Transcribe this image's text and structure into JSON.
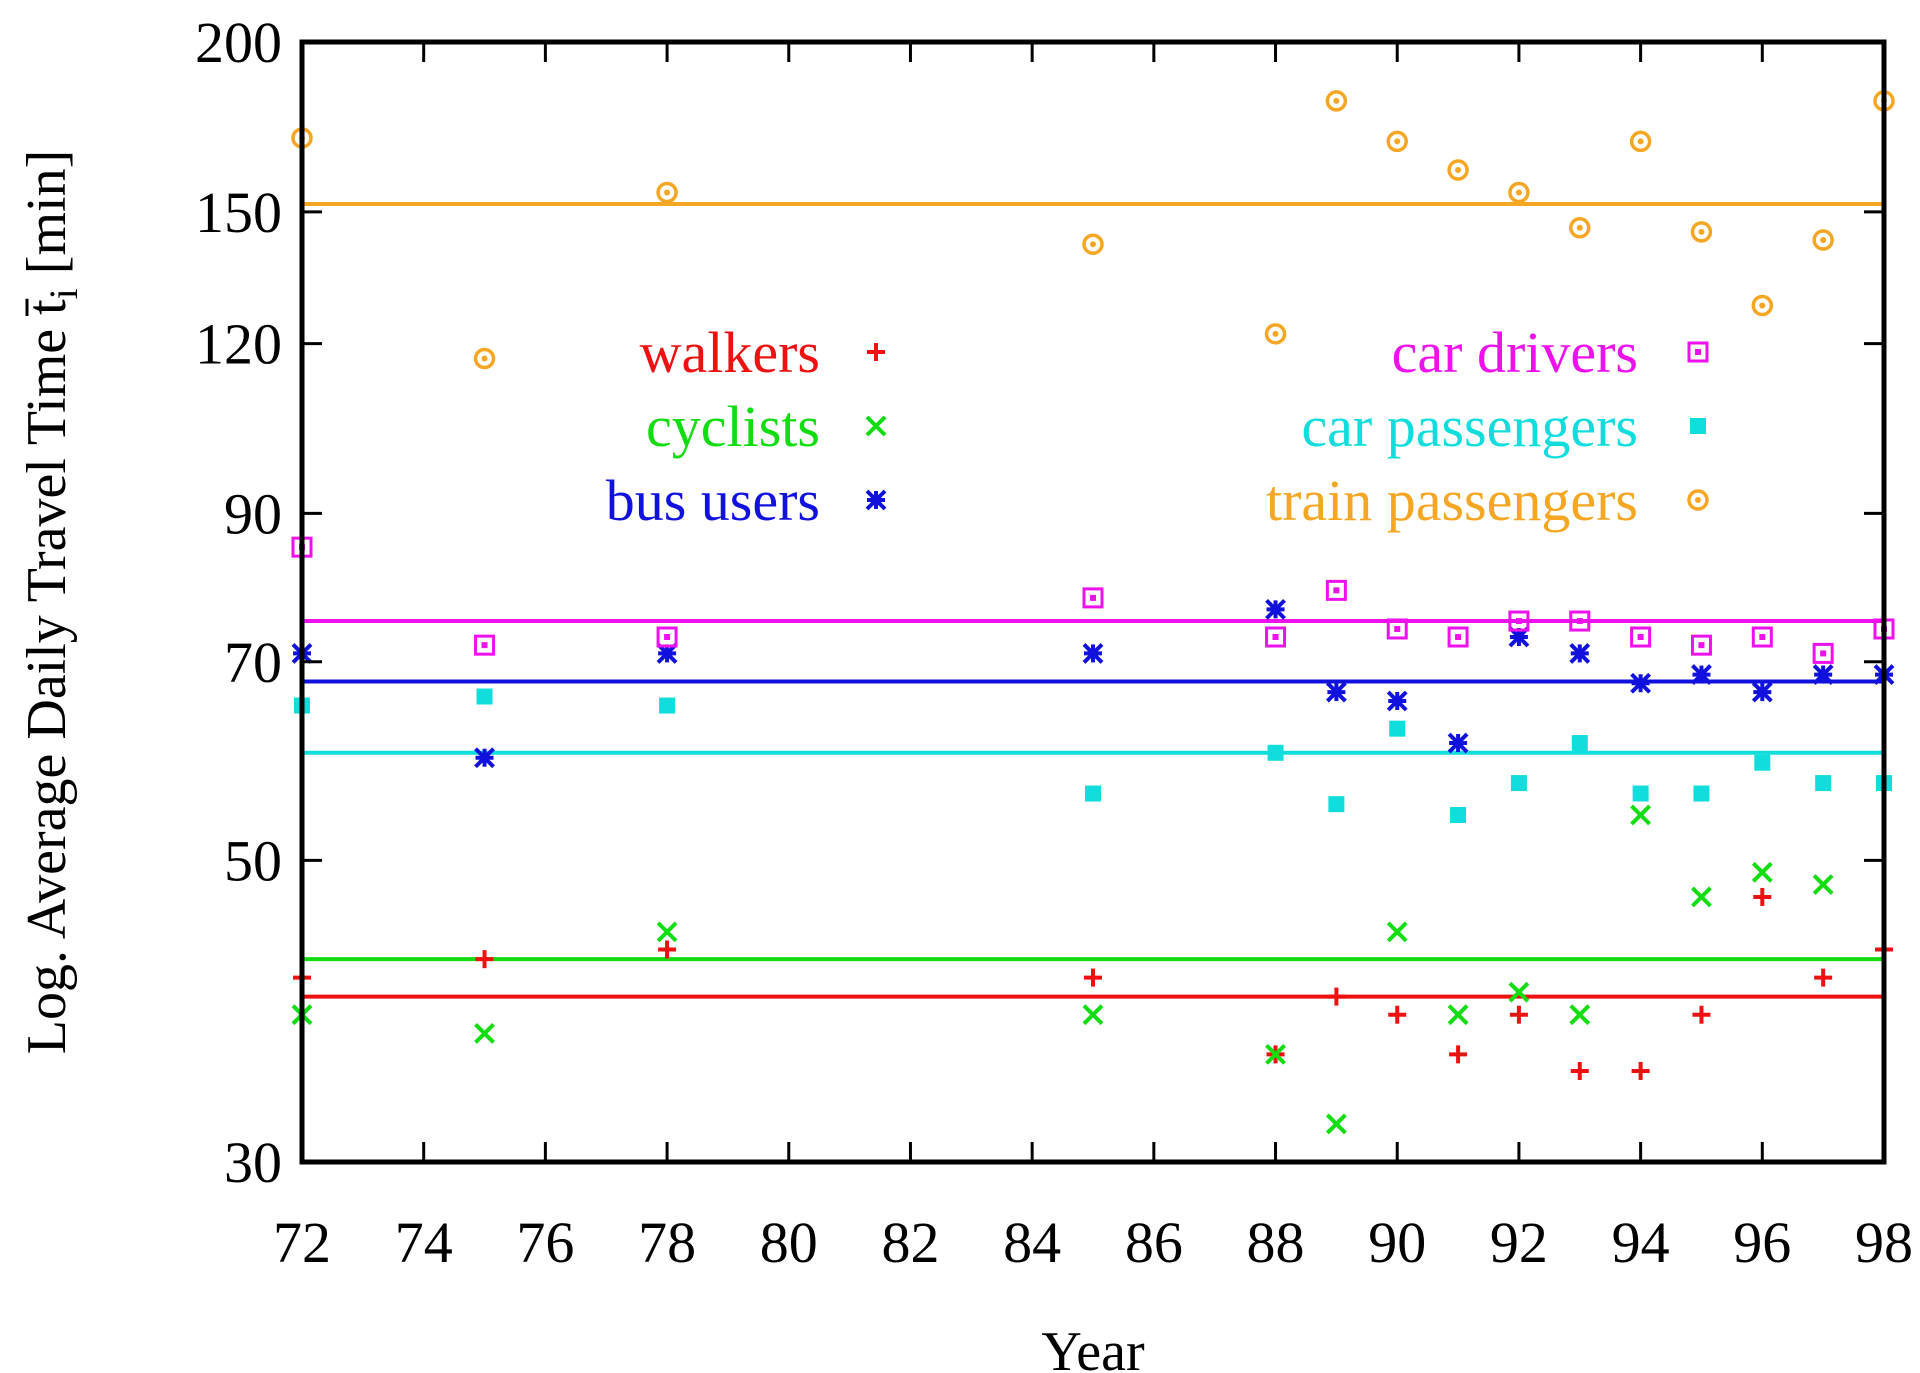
{
  "chart_data": {
    "type": "scatter",
    "xlabel": "Year",
    "ylabel": "Log. Average Daily Travel Time t̄",
    "ylabel_sub": "i",
    "ylabel_unit": " [min]",
    "xlim": [
      72,
      98
    ],
    "ylim": [
      30,
      200
    ],
    "y_scale": "log",
    "x_ticks": [
      72,
      74,
      76,
      78,
      80,
      82,
      84,
      86,
      88,
      90,
      92,
      94,
      96,
      98
    ],
    "y_ticks": [
      30,
      50,
      70,
      90,
      120,
      150,
      200
    ],
    "grid": false,
    "legend_placement": "inside-middle",
    "series": [
      {
        "name": "walkers",
        "color": "#ee1111",
        "marker": "plus",
        "mean": 39.7,
        "points": [
          [
            72,
            41
          ],
          [
            75,
            42.3
          ],
          [
            78,
            43
          ],
          [
            85,
            41
          ],
          [
            88,
            36
          ],
          [
            89,
            39.7
          ],
          [
            90,
            38.5
          ],
          [
            91,
            36
          ],
          [
            92,
            38.5
          ],
          [
            93,
            35
          ],
          [
            94,
            35
          ],
          [
            95,
            38.5
          ],
          [
            96,
            47
          ],
          [
            97,
            41
          ],
          [
            98,
            43
          ]
        ]
      },
      {
        "name": "cyclists",
        "color": "#11dd11",
        "marker": "cross",
        "mean": 42.3,
        "points": [
          [
            72,
            38.5
          ],
          [
            75,
            37.3
          ],
          [
            78,
            44.3
          ],
          [
            85,
            38.5
          ],
          [
            88,
            36
          ],
          [
            89,
            32
          ],
          [
            90,
            44.3
          ],
          [
            91,
            38.5
          ],
          [
            92,
            40
          ],
          [
            93,
            38.5
          ],
          [
            94,
            54
          ],
          [
            95,
            47
          ],
          [
            96,
            49
          ],
          [
            97,
            48
          ]
        ]
      },
      {
        "name": "bus users",
        "color": "#1111dd",
        "marker": "star",
        "mean": 67.7,
        "points": [
          [
            72,
            71
          ],
          [
            75,
            59.5
          ],
          [
            78,
            71
          ],
          [
            85,
            71
          ],
          [
            88,
            76.5
          ],
          [
            89,
            66.5
          ],
          [
            90,
            65.5
          ],
          [
            91,
            61
          ],
          [
            92,
            73
          ],
          [
            93,
            71
          ],
          [
            94,
            67.5
          ],
          [
            95,
            68.5
          ],
          [
            96,
            66.5
          ],
          [
            97,
            68.5
          ],
          [
            98,
            68.5
          ]
        ]
      },
      {
        "name": "car drivers",
        "color": "#ee11ee",
        "marker": "square-open",
        "mean": 75,
        "points": [
          [
            72,
            85
          ],
          [
            75,
            72
          ],
          [
            78,
            73
          ],
          [
            85,
            78
          ],
          [
            88,
            73
          ],
          [
            89,
            79
          ],
          [
            90,
            74
          ],
          [
            91,
            73
          ],
          [
            92,
            75
          ],
          [
            93,
            75
          ],
          [
            94,
            73
          ],
          [
            95,
            72
          ],
          [
            96,
            73
          ],
          [
            97,
            71
          ],
          [
            98,
            74
          ]
        ]
      },
      {
        "name": "car passengers",
        "color": "#11dddd",
        "marker": "square-filled",
        "mean": 60,
        "points": [
          [
            72,
            65
          ],
          [
            75,
            66
          ],
          [
            78,
            65
          ],
          [
            85,
            56
          ],
          [
            88,
            60
          ],
          [
            89,
            55
          ],
          [
            90,
            62.5
          ],
          [
            91,
            54
          ],
          [
            92,
            57
          ],
          [
            93,
            61
          ],
          [
            94,
            56
          ],
          [
            95,
            56
          ],
          [
            96,
            59
          ],
          [
            97,
            57
          ],
          [
            98,
            57
          ]
        ]
      },
      {
        "name": "train passengers",
        "color": "#f5a623",
        "marker": "circle-dot",
        "mean": 152,
        "points": [
          [
            72,
            170
          ],
          [
            78,
            155
          ],
          [
            85,
            142
          ],
          [
            88,
            122
          ],
          [
            89,
            181
          ],
          [
            90,
            169
          ],
          [
            91,
            161
          ],
          [
            92,
            155
          ],
          [
            93,
            146
          ],
          [
            94,
            169
          ],
          [
            95,
            145
          ],
          [
            96,
            128
          ],
          [
            97,
            143
          ],
          [
            98,
            181
          ]
        ]
      }
    ],
    "extra_points": [
      {
        "series": "train passengers",
        "x": 75,
        "y": 117
      }
    ]
  }
}
